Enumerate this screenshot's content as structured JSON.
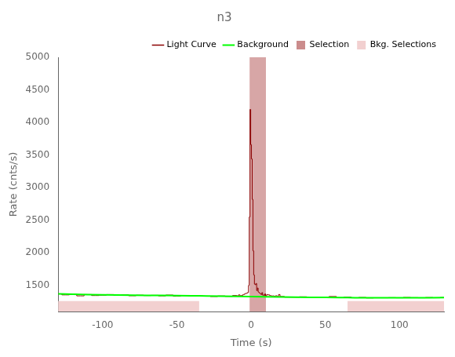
{
  "chart_data": {
    "type": "line",
    "title": "n3",
    "xlabel": "Time (s)",
    "ylabel": "Rate (cnts/s)",
    "xlim": [
      -130,
      130
    ],
    "ylim": [
      1100,
      5000
    ],
    "xticks": [
      -100,
      -50,
      0,
      50,
      100
    ],
    "yticks": [
      1500,
      2000,
      2500,
      3000,
      3500,
      4000,
      4500,
      5000
    ],
    "grid": false,
    "legend": "upper right",
    "series": [
      {
        "name": "Light Curve",
        "color": "#8B0000",
        "line_style": "steps-mid",
        "x": [
          -130,
          -125,
          -120,
          -115,
          -110,
          -105,
          -100,
          -95,
          -90,
          -85,
          -80,
          -75,
          -70,
          -65,
          -60,
          -55,
          -50,
          -45,
          -40,
          -35,
          -30,
          -25,
          -20,
          -15,
          -10,
          -9,
          -8,
          -7,
          -6,
          -5,
          -4,
          -3,
          -2,
          -1.5,
          -1.0,
          -0.5,
          0.0,
          0.5,
          1.0,
          1.5,
          2.0,
          2.5,
          3.0,
          3.5,
          4.0,
          4.5,
          5.0,
          5.5,
          6.0,
          6.5,
          7.0,
          7.5,
          8.0,
          8.5,
          9.0,
          9.5,
          10.0,
          11,
          12,
          13,
          14,
          15,
          16,
          17,
          18,
          19,
          20,
          25,
          30,
          35,
          40,
          45,
          50,
          55,
          60,
          65,
          70,
          75,
          80,
          85,
          90,
          95,
          100,
          105,
          110,
          115,
          120,
          125,
          130
        ],
        "values": [
          1370,
          1355,
          1365,
          1340,
          1360,
          1345,
          1350,
          1360,
          1348,
          1355,
          1342,
          1350,
          1345,
          1348,
          1340,
          1352,
          1335,
          1345,
          1340,
          1338,
          1335,
          1330,
          1338,
          1332,
          1345,
          1338,
          1355,
          1342,
          1348,
          1360,
          1370,
          1380,
          1390,
          1500,
          2550,
          4200,
          3660,
          3440,
          2820,
          2030,
          1660,
          1520,
          1510,
          1530,
          1420,
          1460,
          1400,
          1390,
          1380,
          1370,
          1360,
          1390,
          1350,
          1355,
          1345,
          1370,
          1340,
          1360,
          1355,
          1345,
          1338,
          1340,
          1335,
          1342,
          1325,
          1360,
          1330,
          1320,
          1320,
          1325,
          1318,
          1322,
          1315,
          1330,
          1312,
          1320,
          1310,
          1315,
          1308,
          1310,
          1310,
          1312,
          1310,
          1315,
          1312,
          1310,
          1314,
          1310,
          1314
        ]
      },
      {
        "name": "Background",
        "color": "#00FF00",
        "line_style": "solid",
        "x": [
          -130,
          -120,
          -110,
          -100,
          -90,
          -80,
          -70,
          -60,
          -50,
          -40,
          -35,
          -30,
          -20,
          -10,
          0,
          10,
          20,
          30,
          40,
          50,
          60,
          65,
          70,
          80,
          90,
          100,
          110,
          120,
          130
        ],
        "values": [
          1370,
          1365,
          1360,
          1355,
          1352,
          1350,
          1348,
          1346,
          1343,
          1341,
          1340,
          1338,
          1335,
          1332,
          1328,
          1325,
          1322,
          1320,
          1318,
          1316,
          1314,
          1313,
          1312,
          1311,
          1310,
          1310,
          1311,
          1312,
          1314
        ]
      }
    ],
    "regions": [
      {
        "name": "Selection",
        "color": "#8B0000",
        "x": [
          [
            -1.0,
            10.0
          ]
        ]
      },
      {
        "name": "Bkg. Selections",
        "color": "#f2d0d0",
        "x": [
          [
            -130,
            -35
          ],
          [
            65,
            130
          ]
        ],
        "y": [
          1100,
          1260
        ]
      }
    ]
  }
}
